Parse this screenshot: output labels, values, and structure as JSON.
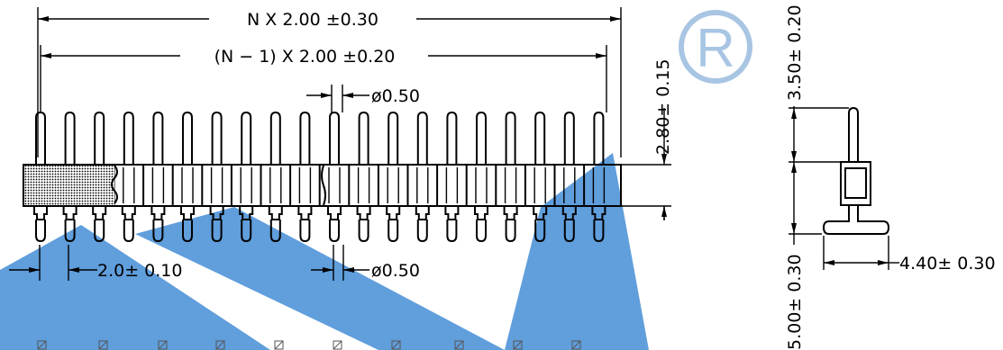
{
  "dimensions": {
    "overall_length": "N X 2.00 ±0.30",
    "pitch_span": "(N − 1) X 2.00 ±0.20",
    "pin_diameter_top": "ø0.50",
    "pin_diameter_bottom": "ø0.50",
    "pitch": "2.0± 0.10",
    "upper_pin_height": "2.80± 0.15",
    "side_top_length": "3.50± 0.20",
    "side_bottom_length": "5.00± 0.30",
    "side_foot_length": "4.40± 0.30"
  },
  "header": {
    "pin_count_shown": 20
  },
  "watermark": {
    "text": "R",
    "color": "#9fbfe0",
    "stripe_color": "#2f7fd0"
  }
}
